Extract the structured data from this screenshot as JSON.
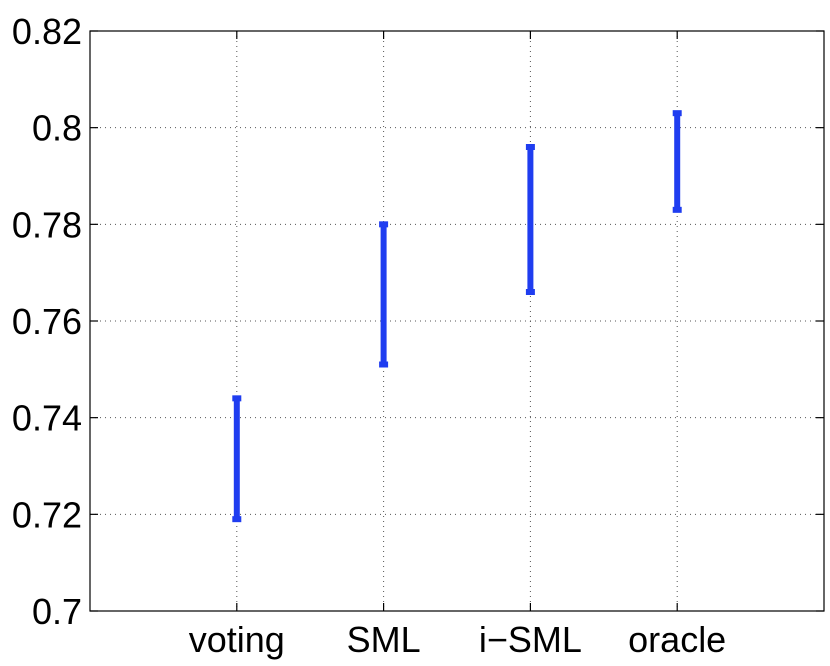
{
  "chart_data": {
    "type": "errorbar",
    "title": "",
    "xlabel": "",
    "ylabel": "",
    "categories": [
      "voting",
      "SML",
      "i−SML",
      "oracle"
    ],
    "intervals": [
      {
        "low": 0.719,
        "high": 0.744
      },
      {
        "low": 0.751,
        "high": 0.78
      },
      {
        "low": 0.766,
        "high": 0.796
      },
      {
        "low": 0.783,
        "high": 0.803
      }
    ],
    "ylim": [
      0.7,
      0.82
    ],
    "yticks": [
      0.7,
      0.72,
      0.74,
      0.76,
      0.78,
      0.8,
      0.82
    ],
    "ytick_labels": [
      "0.7",
      "0.72",
      "0.74",
      "0.76",
      "0.78",
      "0.8",
      "0.82"
    ],
    "grid": true,
    "bar_color": "#1f3df0"
  }
}
